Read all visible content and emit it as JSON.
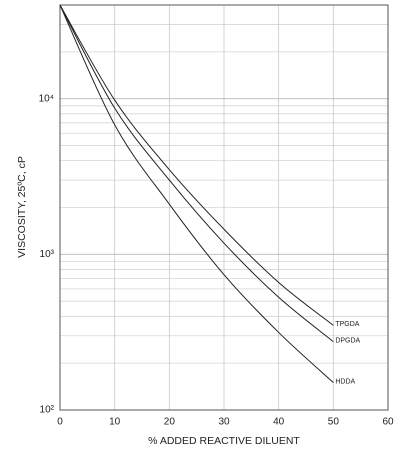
{
  "chart_data": {
    "type": "line",
    "xlabel": "% ADDED REACTIVE DILUENT",
    "ylabel": "VISCOSITY, 25ºC, cP",
    "x": [
      0,
      10,
      20,
      30,
      40,
      50
    ],
    "series": [
      {
        "name": "TPGDA",
        "color": "#222222",
        "values": [
          40000,
          9800,
          3500,
          1450,
          660,
          350
        ]
      },
      {
        "name": "DPGDA",
        "color": "#222222",
        "values": [
          40000,
          8700,
          3000,
          1180,
          530,
          275
        ]
      },
      {
        "name": "HDDA",
        "color": "#222222",
        "values": [
          40000,
          6800,
          2100,
          740,
          315,
          150
        ]
      }
    ],
    "xlim": [
      0,
      60
    ],
    "xticks": [
      0,
      10,
      20,
      30,
      40,
      50,
      60
    ],
    "ylim": [
      100,
      40000
    ],
    "ylog": true,
    "yticks": [
      {
        "value": 100,
        "label": "10²"
      },
      {
        "value": 1000,
        "label": "10³"
      },
      {
        "value": 10000,
        "label": "10⁴"
      }
    ],
    "yminorticks": [
      200,
      300,
      400,
      500,
      600,
      700,
      800,
      900,
      2000,
      3000,
      4000,
      5000,
      6000,
      7000,
      8000,
      9000,
      20000,
      30000
    ],
    "grid": true
  }
}
